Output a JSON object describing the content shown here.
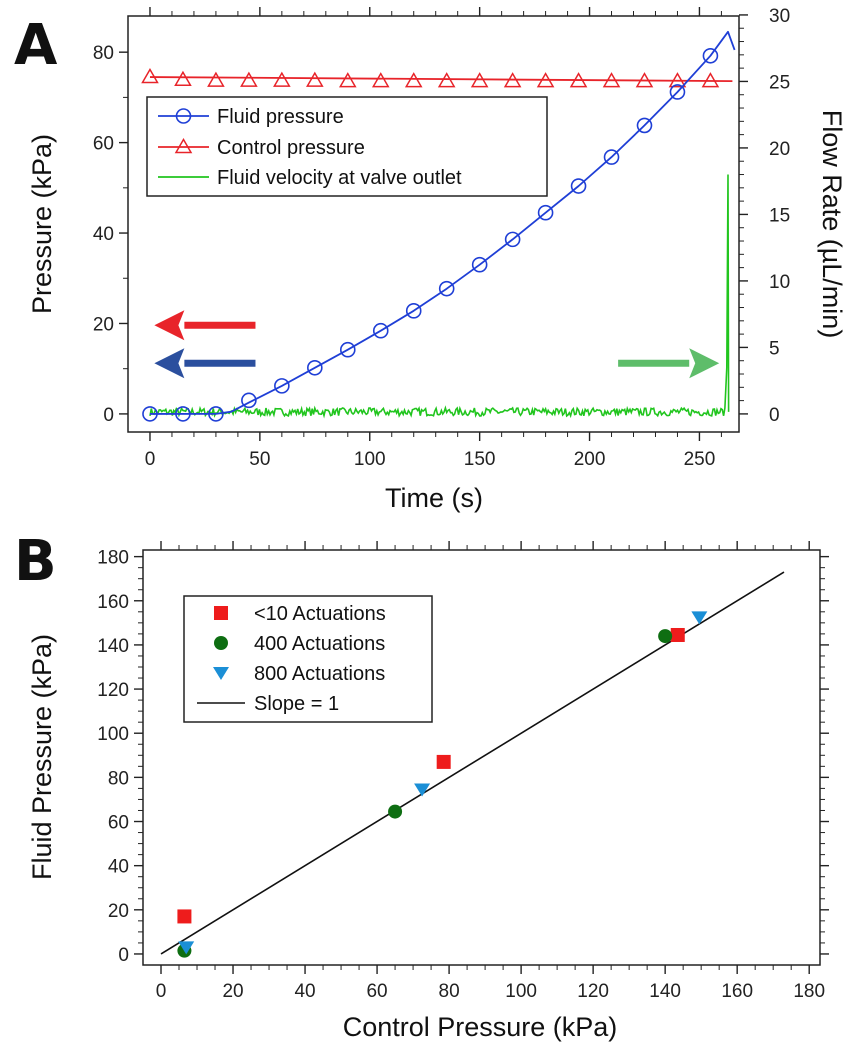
{
  "chart_data": [
    {
      "panel": "A",
      "type": "line",
      "xlabel": "Time (s)",
      "ylabel": "Pressure (kPa)",
      "y2label": "Flow Rate (µL/min)",
      "xlim": [
        -10,
        268
      ],
      "ylim": [
        -4,
        88
      ],
      "y2lim": [
        -1.36,
        29.92
      ],
      "x_ticks": [
        0,
        50,
        100,
        150,
        200,
        250
      ],
      "y_ticks": [
        0,
        20,
        40,
        60,
        80
      ],
      "y2_ticks": [
        0,
        5,
        10,
        15,
        20,
        25,
        30
      ],
      "grid": false,
      "legend_position": "upper-left",
      "series": [
        {
          "name": "Fluid pressure",
          "color": "#1f3fd6",
          "marker": "circle",
          "axis": "left",
          "x": [
            0,
            15,
            30,
            45,
            60,
            75,
            90,
            105,
            120,
            135,
            150,
            165,
            180,
            195,
            210,
            225,
            240,
            255
          ],
          "values": [
            0,
            0,
            0,
            3,
            6.2,
            10.2,
            14.2,
            18.4,
            22.8,
            27.7,
            33.0,
            38.6,
            44.5,
            50.4,
            56.8,
            63.8,
            71.2,
            79.2
          ],
          "line": {
            "x": [
              0,
              30,
              37,
              45,
              60,
              75,
              90,
              105,
              120,
              135,
              150,
              165,
              180,
              195,
              210,
              225,
              240,
              255,
              263,
              266
            ],
            "values": [
              0,
              0,
              0.5,
              2.5,
              6.2,
              10.2,
              14.2,
              18.4,
              22.8,
              27.7,
              33.0,
              38.6,
              44.5,
              50.4,
              56.8,
              63.8,
              71.2,
              79.2,
              84.5,
              80.5
            ]
          }
        },
        {
          "name": "Control pressure",
          "color": "#e8242a",
          "marker": "triangle",
          "axis": "left",
          "x": [
            0,
            15,
            30,
            45,
            60,
            75,
            90,
            105,
            120,
            135,
            150,
            165,
            180,
            195,
            210,
            225,
            240,
            255
          ],
          "values": [
            74.5,
            73.9,
            73.7,
            73.7,
            73.7,
            73.7,
            73.6,
            73.6,
            73.6,
            73.6,
            73.6,
            73.6,
            73.6,
            73.6,
            73.6,
            73.6,
            73.6,
            73.6
          ],
          "line": {
            "x": [
              0,
              265
            ],
            "values": [
              74.5,
              73.6
            ]
          }
        },
        {
          "name": "Fluid velocity at valve outlet",
          "color": "#21c51e",
          "marker": "none",
          "axis": "right",
          "baseline": 0.15,
          "noise_amplitude": 0.3,
          "spike": {
            "x": 263,
            "peak": 18.0
          }
        }
      ],
      "annotations": [
        {
          "type": "arrow",
          "direction": "left",
          "color": "#e8242a",
          "x_from": 48,
          "x_to": 2,
          "y": 19.6
        },
        {
          "type": "arrow",
          "direction": "left",
          "color": "#2b4f9e",
          "x_from": 48,
          "x_to": 2,
          "y": 11.2
        },
        {
          "type": "arrow",
          "direction": "right",
          "color": "#5ebd6a",
          "x_from": 213,
          "x_to": 259,
          "y": 11.2
        }
      ]
    },
    {
      "panel": "B",
      "type": "scatter",
      "xlabel": "Control Pressure (kPa)",
      "ylabel": "Fluid Pressure (kPa)",
      "xlim": [
        -5,
        183
      ],
      "ylim": [
        -5,
        183
      ],
      "x_ticks": [
        0,
        20,
        40,
        60,
        80,
        100,
        120,
        140,
        160,
        180
      ],
      "y_ticks": [
        0,
        20,
        40,
        60,
        80,
        100,
        120,
        140,
        160,
        180
      ],
      "grid": false,
      "legend_position": "upper-left",
      "series": [
        {
          "name": "<10 Actuations",
          "color": "#ee1c1c",
          "marker": "square",
          "x": [
            6.5,
            78.5,
            143.5
          ],
          "values": [
            17,
            87,
            144.5
          ]
        },
        {
          "name": "400 Actuations",
          "color": "#0e6e12",
          "marker": "circle",
          "x": [
            6.5,
            65,
            140
          ],
          "values": [
            1.5,
            64.5,
            144
          ]
        },
        {
          "name": "800 Actuations",
          "color": "#1b8fd6",
          "marker": "triangle-down",
          "x": [
            7,
            72.5,
            149.5
          ],
          "values": [
            3,
            74.5,
            152.5
          ]
        },
        {
          "name": "Slope = 1",
          "color": "#111111",
          "marker": "none",
          "x": [
            0,
            173
          ],
          "values": [
            0,
            173
          ]
        }
      ]
    }
  ],
  "panels": {
    "a_letter": "A",
    "b_letter": "B"
  }
}
